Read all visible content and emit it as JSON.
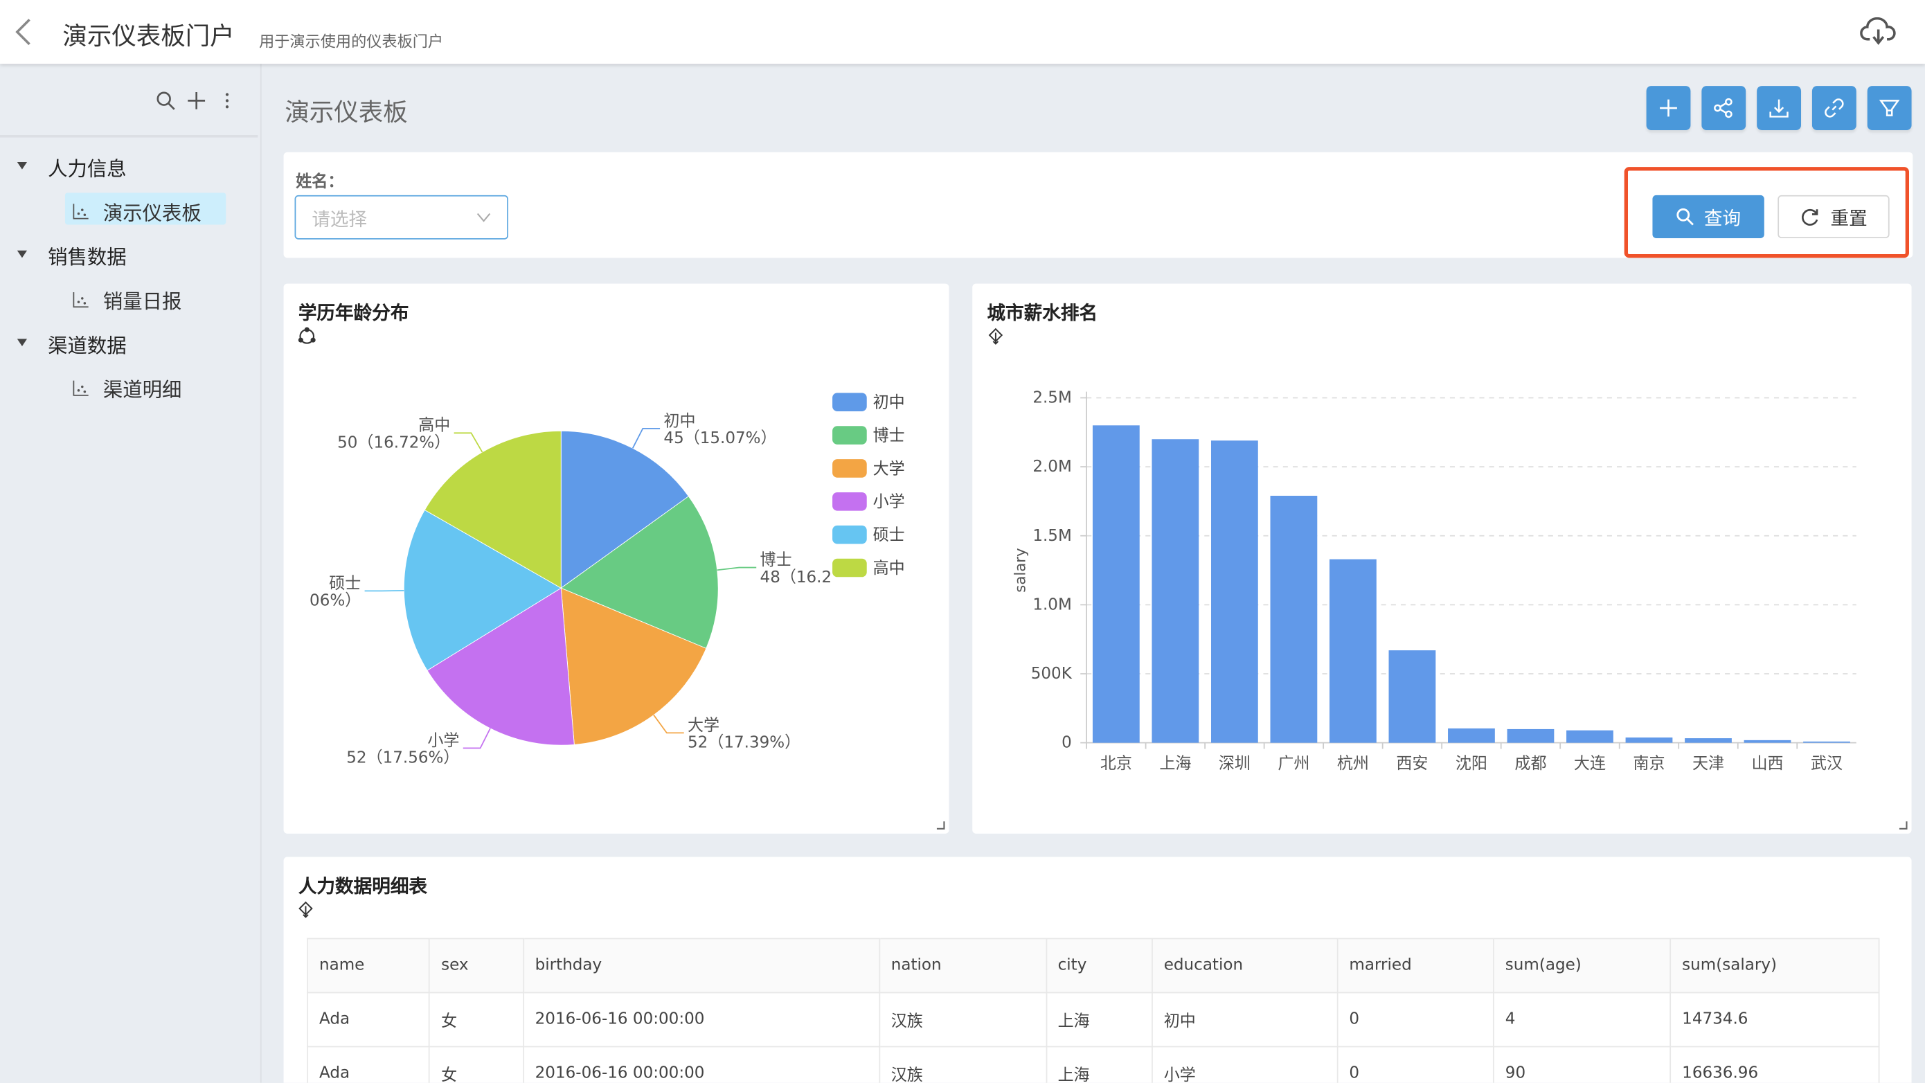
{
  "header": {
    "title": "演示仪表板门户",
    "subtitle": "用于演示使用的仪表板门户",
    "back_icon": "chevron-left-icon",
    "cloud_icon": "cloud-download-icon"
  },
  "sidebar": {
    "toolbar_icons": [
      "search-icon",
      "plus-icon",
      "more-vertical-icon"
    ],
    "groups": [
      {
        "label": "人力信息",
        "items": [
          {
            "label": "演示仪表板",
            "selected": true
          }
        ]
      },
      {
        "label": "销售数据",
        "items": [
          {
            "label": "销量日报",
            "selected": false
          }
        ]
      },
      {
        "label": "渠道数据",
        "items": [
          {
            "label": "渠道明细",
            "selected": false
          }
        ]
      }
    ]
  },
  "main": {
    "title": "演示仪表板",
    "toolbar_buttons": [
      "plus-icon",
      "share-icon",
      "download-icon",
      "link-icon",
      "filter-icon"
    ],
    "filter": {
      "label": "姓名：",
      "placeholder": "请选择",
      "query_label": "查询",
      "reset_label": "重置"
    },
    "accent": "#4a98da",
    "highlight_color": "#f0522a"
  },
  "pie_card": {
    "title": "学历年龄分布"
  },
  "bar_card": {
    "title": "城市薪水排名"
  },
  "table_card": {
    "title": "人力数据明细表",
    "columns": [
      "name",
      "sex",
      "birthday",
      "nation",
      "city",
      "education",
      "married",
      "sum(age)",
      "sum(salary)"
    ],
    "rows": [
      [
        "Ada",
        "女",
        "2016-06-16 00:00:00",
        "汉族",
        "上海",
        "初中",
        "0",
        "4",
        "14734.6"
      ],
      [
        "Ada",
        "女",
        "2016-06-16 00:00:00",
        "汉族",
        "上海",
        "小学",
        "0",
        "90",
        "16636.96"
      ]
    ]
  },
  "chart_data": [
    {
      "type": "pie",
      "title": "学历年龄分布",
      "legend_position": "top-right",
      "slices": [
        {
          "name": "初中",
          "label": "45（15.07%）",
          "percent": 15.07,
          "color": "#5f9ae8"
        },
        {
          "name": "博士",
          "label": "48（16.2",
          "percent": 16.2,
          "color": "#68cb83"
        },
        {
          "name": "大学",
          "label": "52（17.39%）",
          "percent": 17.39,
          "color": "#f3a544"
        },
        {
          "name": "小学",
          "label": "52（17.56%）",
          "percent": 17.56,
          "color": "#c471f0"
        },
        {
          "name": "硕士",
          "label": "06%）",
          "percent": 17.06,
          "color": "#66c5f2"
        },
        {
          "name": "高中",
          "label": "50（16.72%）",
          "percent": 16.72,
          "color": "#bdd944"
        }
      ]
    },
    {
      "type": "bar",
      "title": "城市薪水排名",
      "xlabel": "",
      "ylabel": "salary",
      "ylim": [
        0,
        2500000
      ],
      "yticks": [
        "0",
        "500K",
        "1.0M",
        "1.5M",
        "2.0M",
        "2.5M"
      ],
      "grid": true,
      "color": "#6199e9",
      "categories": [
        "北京",
        "上海",
        "深圳",
        "广州",
        "杭州",
        "西安",
        "沈阳",
        "成都",
        "大连",
        "南京",
        "天津",
        "山西",
        "武汉"
      ],
      "values": [
        2300000,
        2200000,
        2190000,
        1790000,
        1330000,
        670000,
        104000,
        99000,
        90000,
        38000,
        33000,
        19000,
        9000
      ]
    }
  ]
}
